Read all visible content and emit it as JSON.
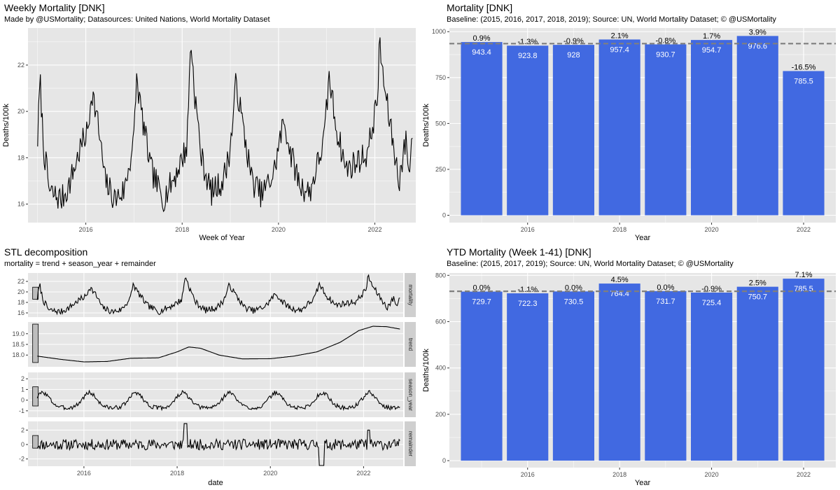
{
  "colors": {
    "panel_bg": "#e6e6e6",
    "grid": "#ffffff",
    "bar": "#4169e1",
    "line": "#000000",
    "dashed": "#7f7f7f",
    "strip_bg": "#cfcfcf",
    "range_bar": "#bdbdbd"
  },
  "panels": {
    "weekly": {
      "title": "Weekly Mortality [DNK]",
      "subtitle": "Made by @USMortality; Datasources: United Nations, World Mortality Dataset"
    },
    "annual": {
      "title": "Mortality [DNK]",
      "subtitle": "Baseline: (2015, 2016, 2017, 2018, 2019); Source: UN, World Mortality Dataset; © @USMortality"
    },
    "stl": {
      "title": "STL decomposition",
      "subtitle": "mortality = trend + season_year + remainder"
    },
    "ytd": {
      "title": "YTD Mortality (Week 1-41) [DNK]",
      "subtitle": "Baseline: (2015, 2017, 2019); Source: UN, World Mortality Dataset; © @USMortality"
    }
  },
  "chart_data": [
    {
      "id": "weekly",
      "type": "line",
      "title": "Weekly Mortality [DNK]",
      "xlabel": "Week of Year",
      "ylabel": "Deaths/100k",
      "xlim": [
        2014.8,
        2022.85
      ],
      "ylim": [
        15.2,
        23.6
      ],
      "x_ticks": [
        2016,
        2018,
        2020,
        2022
      ],
      "x_tick_labels": [
        "2016",
        "2018",
        "2020",
        "2022"
      ],
      "y_ticks": [
        16,
        18,
        20,
        22
      ],
      "y_tick_labels": [
        "16",
        "18",
        "20",
        "22"
      ],
      "grid": true,
      "series": [
        {
          "x_start": 2015.0,
          "x_end": 2022.78,
          "keypoints": [
            [
              0,
              18.8
            ],
            [
              0.05,
              21.4
            ],
            [
              0.12,
              18.5
            ],
            [
              0.25,
              16.5
            ],
            [
              0.5,
              16.2
            ],
            [
              0.65,
              16.8
            ],
            [
              0.9,
              18.5
            ],
            [
              1.05,
              19.2
            ],
            [
              1.12,
              21.0
            ],
            [
              1.25,
              19.5
            ],
            [
              1.4,
              17.0
            ],
            [
              1.6,
              16.2
            ],
            [
              1.8,
              16.6
            ],
            [
              2.0,
              18.8
            ],
            [
              2.05,
              21.5
            ],
            [
              2.15,
              20.0
            ],
            [
              2.35,
              17.5
            ],
            [
              2.6,
              16.2
            ],
            [
              2.85,
              17.2
            ],
            [
              3.1,
              18.5
            ],
            [
              3.18,
              23.2
            ],
            [
              3.25,
              21.0
            ],
            [
              3.4,
              18.0
            ],
            [
              3.6,
              16.5
            ],
            [
              3.85,
              17.0
            ],
            [
              4.0,
              18.4
            ],
            [
              4.12,
              21.3
            ],
            [
              4.25,
              19.5
            ],
            [
              4.45,
              17.0
            ],
            [
              4.65,
              16.4
            ],
            [
              4.9,
              17.3
            ],
            [
              5.05,
              19.0
            ],
            [
              5.12,
              19.6
            ],
            [
              5.25,
              18.2
            ],
            [
              5.45,
              16.8
            ],
            [
              5.65,
              16.5
            ],
            [
              5.95,
              18.8
            ],
            [
              6.05,
              21.5
            ],
            [
              6.2,
              19.3
            ],
            [
              6.4,
              17.5
            ],
            [
              6.6,
              17.8
            ],
            [
              6.85,
              18.2
            ],
            [
              7.05,
              20.5
            ],
            [
              7.1,
              22.9
            ],
            [
              7.2,
              21.0
            ],
            [
              7.35,
              19.0
            ],
            [
              7.5,
              17.0
            ],
            [
              7.65,
              18.8
            ],
            [
              7.72,
              17.2
            ],
            [
              7.78,
              19.3
            ]
          ]
        }
      ]
    },
    {
      "id": "annual",
      "type": "bar",
      "title": "Mortality [DNK]",
      "xlabel": "Year",
      "ylabel": "Deaths/100k",
      "categories": [
        "2015",
        "2016",
        "2017",
        "2018",
        "2019",
        "2020",
        "2021",
        "2022"
      ],
      "values": [
        943.4,
        923.8,
        928,
        957.4,
        930.7,
        954.7,
        976.6,
        785.5
      ],
      "value_labels": [
        "943.4",
        "923.8",
        "928",
        "957.4",
        "930.7",
        "954.7",
        "976.6",
        "785.5"
      ],
      "pct_labels": [
        "0.9%",
        "-1.3%",
        "-0.9%",
        "2.1%",
        "-0.8%",
        "1.7%",
        "3.9%",
        "-16.5%"
      ],
      "baseline": 935,
      "x_tick_labels": [
        "2016",
        "2018",
        "2020",
        "2022"
      ],
      "y_ticks": [
        0,
        250,
        500,
        750,
        1000
      ],
      "y_tick_labels": [
        "0",
        "250",
        "500",
        "750",
        "1000"
      ],
      "ylim": [
        -40,
        1020
      ],
      "grid": true
    },
    {
      "id": "stl",
      "type": "line",
      "title": "STL decomposition",
      "xlabel": "date",
      "xlim": [
        2014.8,
        2022.85
      ],
      "x_ticks": [
        2016,
        2018,
        2020,
        2022
      ],
      "x_tick_labels": [
        "2016",
        "2018",
        "2020",
        "2022"
      ],
      "facets": [
        {
          "name": "mortality",
          "ylim": [
            15.2,
            23.6
          ],
          "y_ticks": [
            16,
            18,
            20,
            22
          ],
          "y_tick_labels": [
            "16",
            "18",
            "20",
            "22"
          ],
          "range_bar": [
            18.6,
            20.9
          ]
        },
        {
          "name": "trend",
          "ylim": [
            17.45,
            19.55
          ],
          "y_ticks": [
            18.0,
            18.5,
            19.0
          ],
          "y_tick_labels": [
            "18.0",
            "18.5",
            "19.0"
          ],
          "range_bar": [
            17.65,
            19.45
          ],
          "keypoints": [
            [
              0,
              17.95
            ],
            [
              0.5,
              17.8
            ],
            [
              1.0,
              17.68
            ],
            [
              1.5,
              17.7
            ],
            [
              2.0,
              17.85
            ],
            [
              2.6,
              17.87
            ],
            [
              3.0,
              18.15
            ],
            [
              3.25,
              18.38
            ],
            [
              3.5,
              18.32
            ],
            [
              3.9,
              18.0
            ],
            [
              4.4,
              17.82
            ],
            [
              5.0,
              17.83
            ],
            [
              5.5,
              17.95
            ],
            [
              6.0,
              18.15
            ],
            [
              6.5,
              18.6
            ],
            [
              6.9,
              19.15
            ],
            [
              7.2,
              19.35
            ],
            [
              7.5,
              19.33
            ],
            [
              7.78,
              19.22
            ]
          ]
        },
        {
          "name": "season_year",
          "ylim": [
            -1.6,
            2.6
          ],
          "y_ticks": [
            -1,
            0,
            1,
            2
          ],
          "y_tick_labels": [
            "-1",
            "0",
            "1",
            "2"
          ],
          "range_bar": [
            -0.55,
            1.25
          ]
        },
        {
          "name": "remainder",
          "ylim": [
            -3.0,
            3.2
          ],
          "y_ticks": [
            -2,
            0,
            2
          ],
          "y_tick_labels": [
            "-2",
            "0",
            "2"
          ],
          "range_bar": [
            -0.5,
            1.25
          ]
        }
      ]
    },
    {
      "id": "ytd",
      "type": "bar",
      "title": "YTD Mortality (Week 1-41) [DNK]",
      "xlabel": "Year",
      "ylabel": "Deaths/100k",
      "categories": [
        "2015",
        "2016",
        "2017",
        "2018",
        "2019",
        "2020",
        "2021",
        "2022"
      ],
      "values": [
        729.7,
        722.3,
        730.5,
        764.4,
        731.7,
        725.4,
        750.7,
        785.5
      ],
      "value_labels": [
        "729.7",
        "722.3",
        "730.5",
        "764.4",
        "731.7",
        "725.4",
        "750.7",
        "785.5"
      ],
      "pct_labels": [
        "0.0%",
        "-1.1%",
        "0.0%",
        "4.5%",
        "0.0%",
        "-0.9%",
        "2.5%",
        "7.1%"
      ],
      "baseline": 731,
      "x_tick_labels": [
        "2016",
        "2018",
        "2020",
        "2022"
      ],
      "y_ticks": [
        0,
        200,
        400,
        600,
        800
      ],
      "y_tick_labels": [
        "0",
        "200",
        "400",
        "600",
        "800"
      ],
      "ylim": [
        -30,
        810
      ],
      "grid": true
    }
  ]
}
